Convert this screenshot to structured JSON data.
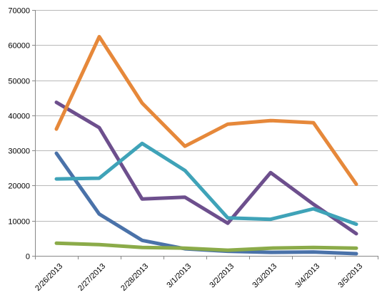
{
  "chart_data": {
    "type": "line",
    "title": "",
    "xlabel": "",
    "ylabel": "",
    "categories": [
      "2/26/2013",
      "2/27/2013",
      "2/28/2013",
      "3/1/2013",
      "3/2/2013",
      "3/3/2013",
      "3/4/2013",
      "3/5/2013"
    ],
    "y_ticks": [
      "0",
      "10000",
      "20000",
      "30000",
      "40000",
      "50000",
      "60000",
      "70000"
    ],
    "ylim": [
      0,
      70000
    ],
    "grid": true,
    "legend": "none",
    "series": [
      {
        "color": "#4a72a9",
        "values": [
          29200,
          11900,
          4400,
          2000,
          1300,
          1000,
          1100,
          600
        ]
      },
      {
        "color": "#8bab49",
        "values": [
          3600,
          3200,
          2400,
          2200,
          1600,
          2200,
          2400,
          2200
        ]
      },
      {
        "color": "#6d4f8d",
        "values": [
          43700,
          36500,
          16200,
          16700,
          9300,
          23700,
          14700,
          6300
        ]
      },
      {
        "color": "#3fa3b8",
        "values": [
          21900,
          22100,
          32000,
          24300,
          10800,
          10400,
          13400,
          9000
        ]
      },
      {
        "color": "#e6883a",
        "values": [
          36100,
          62400,
          43500,
          31200,
          37500,
          38500,
          37900,
          20400
        ]
      }
    ]
  }
}
